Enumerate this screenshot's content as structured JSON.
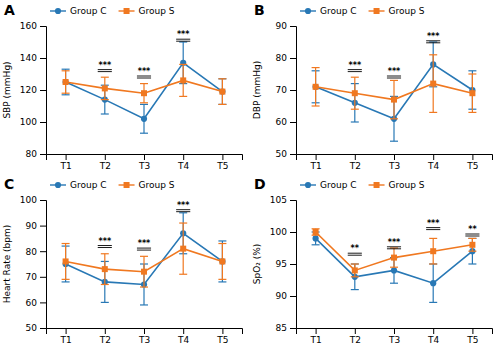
{
  "chart_data": [
    {
      "type": "line",
      "title": "A",
      "ylabel": "SBP (mmHg)",
      "categories": [
        "T1",
        "T2",
        "T3",
        "T4",
        "T5"
      ],
      "series": [
        {
          "name": "Group C",
          "color": "#2878b5",
          "marker": "circle",
          "values": [
            125,
            114,
            102,
            137,
            119
          ],
          "errors": [
            8,
            9,
            9,
            13,
            8
          ]
        },
        {
          "name": "Group S",
          "color": "#f07820",
          "marker": "square",
          "values": [
            125,
            121,
            118,
            126,
            119
          ],
          "errors": [
            7,
            7,
            6,
            10,
            8
          ]
        }
      ],
      "annotations": [
        {
          "x": "T2",
          "y": 134,
          "text": "***"
        },
        {
          "x": "T3",
          "y": 130,
          "text": "***"
        },
        {
          "x": "T4",
          "y": 153,
          "text": "***"
        }
      ],
      "ylim": [
        80,
        160
      ],
      "yticks": [
        80,
        100,
        120,
        140,
        160
      ],
      "grid": false,
      "legend": "upper left"
    },
    {
      "type": "line",
      "title": "B",
      "ylabel": "DBP (mmHg)",
      "categories": [
        "T1",
        "T2",
        "T3",
        "T4",
        "T5"
      ],
      "series": [
        {
          "name": "Group C",
          "color": "#2878b5",
          "marker": "circle",
          "values": [
            71,
            66,
            61,
            78,
            70
          ],
          "errors": [
            5,
            6,
            7,
            7,
            6
          ]
        },
        {
          "name": "Group S",
          "color": "#f07820",
          "marker": "square",
          "values": [
            71,
            69,
            67,
            72,
            69
          ],
          "errors": [
            6,
            5,
            6,
            9,
            6
          ]
        }
      ],
      "annotations": [
        {
          "x": "T2",
          "y": 77,
          "text": "***"
        },
        {
          "x": "T3",
          "y": 75,
          "text": "***"
        },
        {
          "x": "T4",
          "y": 86,
          "text": "***"
        }
      ],
      "ylim": [
        50,
        90
      ],
      "yticks": [
        50,
        60,
        70,
        80,
        90
      ],
      "grid": false,
      "legend": "upper left"
    },
    {
      "type": "line",
      "title": "C",
      "ylabel": "Heart Rate (bpm)",
      "categories": [
        "T1",
        "T2",
        "T3",
        "T4",
        "T5"
      ],
      "series": [
        {
          "name": "Group C",
          "color": "#2878b5",
          "marker": "circle",
          "values": [
            75,
            68,
            67,
            87,
            76
          ],
          "errors": [
            7,
            8,
            8,
            8,
            8
          ]
        },
        {
          "name": "Group S",
          "color": "#f07820",
          "marker": "square",
          "values": [
            76,
            73,
            72,
            81,
            76
          ],
          "errors": [
            7,
            6,
            6,
            10,
            7
          ]
        }
      ],
      "annotations": [
        {
          "x": "T2",
          "y": 83,
          "text": "***"
        },
        {
          "x": "T3",
          "y": 82,
          "text": "***"
        },
        {
          "x": "T4",
          "y": 97,
          "text": "***"
        }
      ],
      "ylim": [
        50,
        100
      ],
      "yticks": [
        50,
        60,
        70,
        80,
        90,
        100
      ],
      "grid": false,
      "legend": "upper left"
    },
    {
      "type": "line",
      "title": "D",
      "ylabel": "SpO₂ (%)",
      "categories": [
        "T1",
        "T2",
        "T3",
        "T4",
        "T5"
      ],
      "series": [
        {
          "name": "Group C",
          "color": "#2878b5",
          "marker": "circle",
          "values": [
            99,
            93,
            94,
            92,
            97
          ],
          "errors": [
            1,
            2,
            2,
            3,
            2
          ]
        },
        {
          "name": "Group S",
          "color": "#f07820",
          "marker": "square",
          "values": [
            100,
            94,
            96,
            97,
            98
          ],
          "errors": [
            0.5,
            1,
            1.5,
            2,
            1
          ]
        }
      ],
      "annotations": [
        {
          "x": "T2",
          "y": 97,
          "text": "**"
        },
        {
          "x": "T3",
          "y": 98,
          "text": "***"
        },
        {
          "x": "T4",
          "y": 101,
          "text": "***"
        },
        {
          "x": "T5",
          "y": 100,
          "text": "**"
        }
      ],
      "ylim": [
        85,
        105
      ],
      "yticks": [
        85,
        90,
        95,
        100,
        105
      ],
      "grid": false,
      "legend": "upper left"
    }
  ]
}
